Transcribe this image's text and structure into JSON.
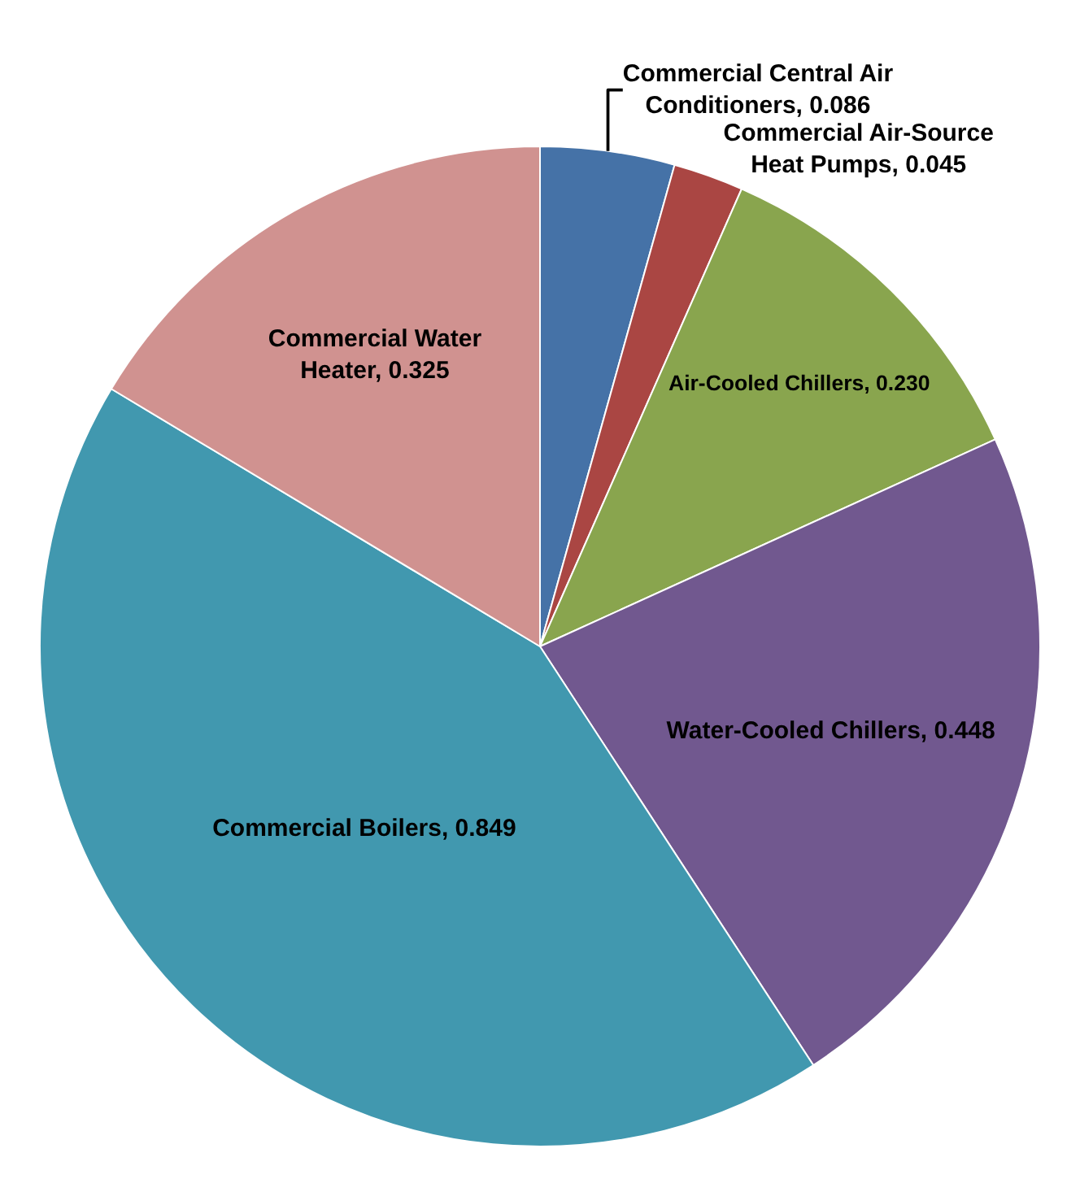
{
  "chart_data": {
    "type": "pie",
    "categories": [
      "Commercial Central Air Conditioners",
      "Commercial Air-Source Heat Pumps",
      "Air-Cooled Chillers",
      "Water-Cooled Chillers",
      "Commercial Boilers",
      "Commercial Water Heater"
    ],
    "values": [
      0.086,
      0.045,
      0.23,
      0.448,
      0.849,
      0.325
    ],
    "value_labels": [
      "0.086",
      "0.045",
      "0.230",
      "0.448",
      "0.849",
      "0.325"
    ],
    "colors": [
      "#4572a7",
      "#aa4643",
      "#89a54e",
      "#71588f",
      "#4198af",
      "#d09290"
    ],
    "legend": false
  }
}
